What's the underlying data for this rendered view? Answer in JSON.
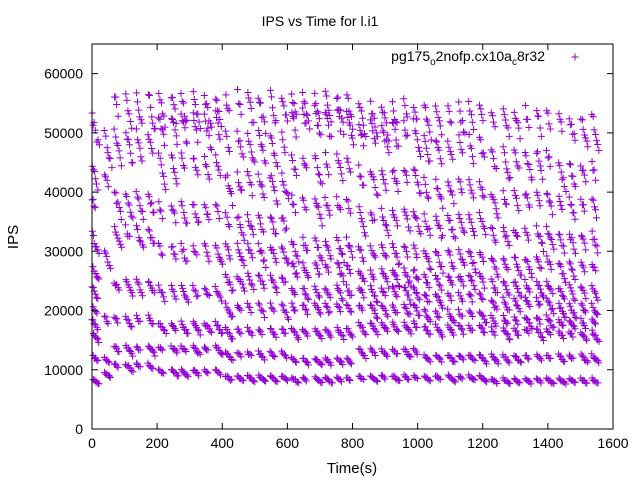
{
  "chart_data": {
    "type": "scatter",
    "title": "IPS vs Time for l.i1",
    "xlabel": "Time(s)",
    "ylabel": "IPS",
    "xlim": [
      0,
      1600
    ],
    "ylim": [
      0,
      65000
    ],
    "xticks": [
      "0",
      "200",
      "400",
      "600",
      "800",
      "1000",
      "1200",
      "1400",
      "1600"
    ],
    "yticks": [
      "0",
      "10000",
      "20000",
      "30000",
      "40000",
      "50000",
      "60000"
    ],
    "grid": false,
    "legend_position": "top-right",
    "legend": {
      "base": "pg175",
      "sub1": "o",
      "mid": "2nofp.cx10a",
      "sub2": "c",
      "tail": "8r32"
    },
    "color": "#9400d3",
    "marker": "plus",
    "series": [
      {
        "name": "pg175o2nofp.cx10ac8r32",
        "sampling_interval_s": 4,
        "band_levels": [
          [
            0,
            40,
            [
              12000,
              9500,
              19000,
              30000,
              43000,
              50000
            ]
          ],
          [
            40,
            200,
            [
              11000,
              14000,
              19000,
              25000,
              34000,
              40000,
              50000,
              56500
            ]
          ],
          [
            200,
            400,
            [
              10000,
              14000,
              18000,
              24000,
              31000,
              38000,
              46000,
              53000,
              56500
            ]
          ],
          [
            400,
            600,
            [
              9000,
              13000,
              17000,
              21000,
              26000,
              31000,
              36000,
              43000,
              50000,
              56500
            ]
          ],
          [
            600,
            800,
            [
              8700,
              12000,
              17000,
              21000,
              24000,
              28000,
              32000,
              39000,
              46000,
              54000,
              56500
            ]
          ],
          [
            800,
            1000,
            [
              9000,
              13500,
              18000,
              21000,
              24000,
              27000,
              31000,
              37000,
              44000,
              52000,
              55000
            ]
          ],
          [
            1000,
            1200,
            [
              9000,
              12500,
              17500,
              20000,
              23000,
              26000,
              30000,
              36000,
              42000,
              49000,
              54500
            ]
          ],
          [
            1200,
            1400,
            [
              8500,
              12500,
              17000,
              19000,
              22000,
              25000,
              29000,
              34000,
              40000,
              47000,
              54000
            ]
          ],
          [
            1400,
            1570,
            [
              8500,
              12500,
              16500,
              18500,
              21000,
              24000,
              28000,
              33000,
              39000,
              45000,
              53000
            ]
          ]
        ],
        "run_period_s": 34,
        "run_count": 46
      }
    ]
  }
}
